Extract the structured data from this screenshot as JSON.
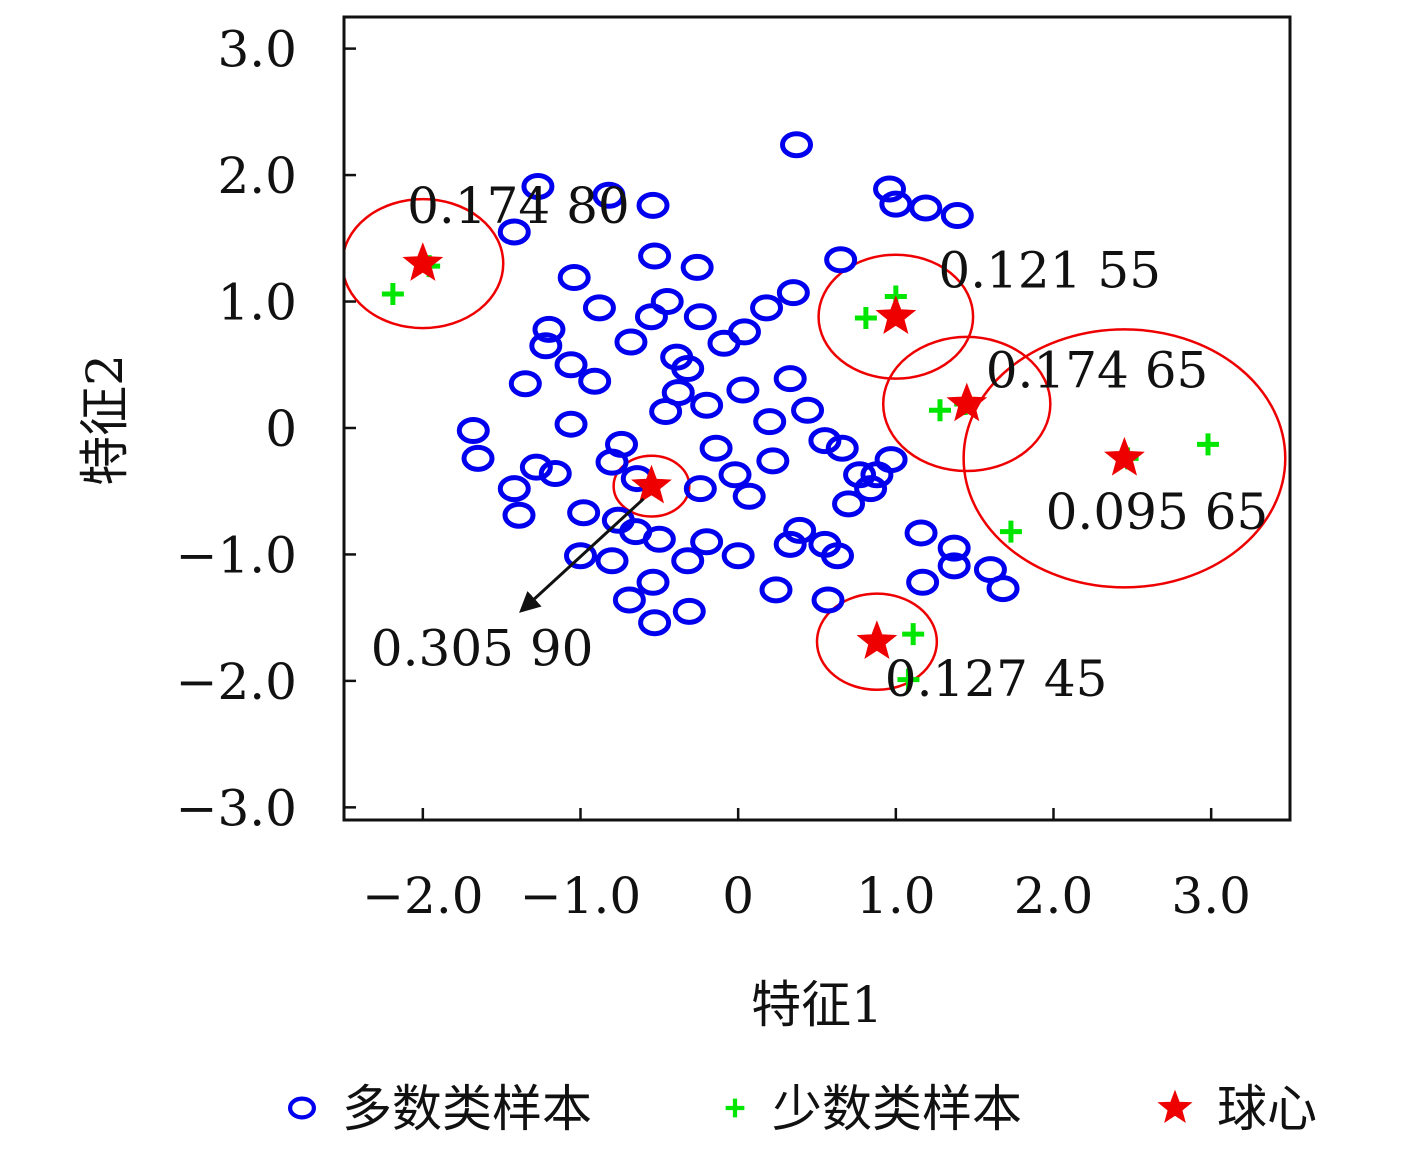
{
  "chart_data": {
    "type": "scatter",
    "title": "",
    "xlabel": "特征1",
    "ylabel": "特征2",
    "xlim": [
      -2.5,
      3.5
    ],
    "ylim": [
      -3.1,
      3.25
    ],
    "xticks": [
      -2,
      -1,
      0,
      1,
      2,
      3
    ],
    "yticks": [
      -3,
      -2,
      -1,
      0,
      1,
      2,
      3
    ],
    "xtick_labels": [
      "−2.0",
      "−1.0",
      "0",
      "1.0",
      "2.0",
      "3.0"
    ],
    "ytick_labels": [
      "−3.0",
      "−2.0",
      "−1.0",
      "0",
      "1.0",
      "2.0",
      "3.0"
    ],
    "grid": false,
    "legend_position": "bottom",
    "series": [
      {
        "name": "多数类样本",
        "marker": "circle-open",
        "color": "#0000ee",
        "points": [
          [
            0.37,
            2.24
          ],
          [
            -1.27,
            1.91
          ],
          [
            -0.82,
            1.84
          ],
          [
            -0.54,
            1.76
          ],
          [
            -1.42,
            1.55
          ],
          [
            0.96,
            1.89
          ],
          [
            1.0,
            1.77
          ],
          [
            1.19,
            1.74
          ],
          [
            1.39,
            1.68
          ],
          [
            -0.53,
            1.36
          ],
          [
            -0.26,
            1.27
          ],
          [
            0.65,
            1.33
          ],
          [
            -1.04,
            1.19
          ],
          [
            0.35,
            1.07
          ],
          [
            -0.45,
            1.0
          ],
          [
            -0.88,
            0.95
          ],
          [
            0.18,
            0.95
          ],
          [
            -0.55,
            0.88
          ],
          [
            -0.24,
            0.88
          ],
          [
            -1.2,
            0.78
          ],
          [
            0.04,
            0.76
          ],
          [
            -0.09,
            0.67
          ],
          [
            -1.22,
            0.65
          ],
          [
            -0.68,
            0.68
          ],
          [
            -0.39,
            0.56
          ],
          [
            -0.32,
            0.47
          ],
          [
            -1.06,
            0.5
          ],
          [
            -0.91,
            0.37
          ],
          [
            -1.35,
            0.35
          ],
          [
            0.33,
            0.39
          ],
          [
            -0.38,
            0.28
          ],
          [
            0.03,
            0.3
          ],
          [
            -0.2,
            0.18
          ],
          [
            -0.46,
            0.13
          ],
          [
            0.44,
            0.14
          ],
          [
            -1.06,
            0.03
          ],
          [
            0.2,
            0.05
          ],
          [
            -1.68,
            -0.02
          ],
          [
            -1.65,
            -0.24
          ],
          [
            -0.74,
            -0.13
          ],
          [
            0.55,
            -0.1
          ],
          [
            0.66,
            -0.16
          ],
          [
            -0.14,
            -0.16
          ],
          [
            -0.8,
            -0.27
          ],
          [
            0.22,
            -0.26
          ],
          [
            0.97,
            -0.25
          ],
          [
            -1.28,
            -0.31
          ],
          [
            -1.16,
            -0.36
          ],
          [
            -0.02,
            -0.37
          ],
          [
            0.77,
            -0.37
          ],
          [
            0.88,
            -0.37
          ],
          [
            -0.64,
            -0.4
          ],
          [
            -1.42,
            -0.48
          ],
          [
            0.84,
            -0.48
          ],
          [
            -0.24,
            -0.48
          ],
          [
            0.07,
            -0.54
          ],
          [
            0.7,
            -0.6
          ],
          [
            -0.98,
            -0.67
          ],
          [
            -1.39,
            -0.69
          ],
          [
            -0.76,
            -0.73
          ],
          [
            0.39,
            -0.81
          ],
          [
            -0.65,
            -0.82
          ],
          [
            1.16,
            -0.83
          ],
          [
            -0.5,
            -0.88
          ],
          [
            0.33,
            -0.92
          ],
          [
            0.55,
            -0.92
          ],
          [
            -0.2,
            -0.9
          ],
          [
            1.37,
            -0.95
          ],
          [
            -1.0,
            -1.01
          ],
          [
            0.0,
            -1.01
          ],
          [
            0.63,
            -1.01
          ],
          [
            -0.8,
            -1.05
          ],
          [
            -0.32,
            -1.05
          ],
          [
            1.37,
            -1.09
          ],
          [
            1.6,
            -1.12
          ],
          [
            -0.54,
            -1.22
          ],
          [
            1.17,
            -1.22
          ],
          [
            1.68,
            -1.27
          ],
          [
            0.24,
            -1.28
          ],
          [
            -0.69,
            -1.36
          ],
          [
            0.57,
            -1.36
          ],
          [
            -0.31,
            -1.45
          ],
          [
            -0.53,
            -1.54
          ]
        ]
      },
      {
        "name": "少数类样本",
        "marker": "plus",
        "color": "#00e600",
        "points": [
          [
            -2.19,
            1.06
          ],
          [
            -1.96,
            1.28
          ],
          [
            0.81,
            0.87
          ],
          [
            1.0,
            1.04
          ],
          [
            1.28,
            0.14
          ],
          [
            1.44,
            0.19
          ],
          [
            1.73,
            -0.82
          ],
          [
            2.47,
            -0.24
          ],
          [
            2.98,
            -0.13
          ],
          [
            1.11,
            -1.63
          ],
          [
            1.08,
            -1.99
          ]
        ]
      },
      {
        "name": "球心",
        "marker": "star",
        "color": "#ee0000",
        "points": [
          [
            -2.0,
            1.3
          ],
          [
            -0.55,
            -0.46
          ],
          [
            1.0,
            0.88
          ],
          [
            1.45,
            0.19
          ],
          [
            2.45,
            -0.24
          ],
          [
            0.88,
            -1.69
          ]
        ]
      }
    ],
    "spheres": [
      {
        "center": [
          -2.0,
          1.3
        ],
        "radius": 0.51
      },
      {
        "center": [
          -0.55,
          -0.46
        ],
        "radius": 0.24
      },
      {
        "center": [
          1.0,
          0.88
        ],
        "radius": 0.49
      },
      {
        "center": [
          1.45,
          0.19
        ],
        "radius": 0.53
      },
      {
        "center": [
          2.45,
          -0.24
        ],
        "radius": 1.02
      },
      {
        "center": [
          0.88,
          -1.69
        ],
        "radius": 0.38
      }
    ],
    "annotations": [
      {
        "text": "0.174 80",
        "x": -2.1,
        "y": 1.62
      },
      {
        "text": "0.121 55",
        "x": 1.27,
        "y": 1.11
      },
      {
        "text": "0.174 65",
        "x": 1.57,
        "y": 0.32
      },
      {
        "text": "0.095 65",
        "x": 1.95,
        "y": -0.8
      },
      {
        "text": "0.305 90",
        "x": -2.33,
        "y": -1.88
      },
      {
        "text": "0.127 45",
        "x": 0.93,
        "y": -2.12
      }
    ],
    "arrow": {
      "from": [
        -0.6,
        -0.56
      ],
      "to": [
        -1.37,
        -1.44
      ]
    }
  }
}
